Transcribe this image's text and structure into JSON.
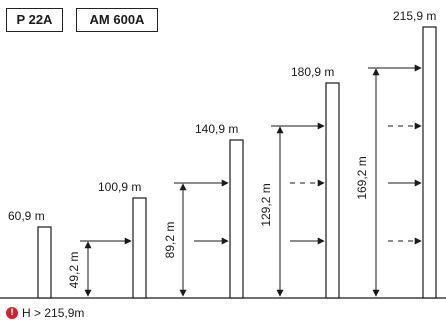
{
  "tabs": [
    {
      "label": "P 22A"
    },
    {
      "label": "AM 600A"
    }
  ],
  "columns": [
    {
      "top_label": "60,9 m",
      "height_label": "",
      "height_m": 60.9
    },
    {
      "top_label": "100,9 m",
      "height_label": "49,2 m",
      "height_m": 100.9
    },
    {
      "top_label": "140,9 m",
      "height_label": "89,2 m",
      "height_m": 140.9
    },
    {
      "top_label": "180,9 m",
      "height_label": "129,2 m",
      "height_m": 180.9
    },
    {
      "top_label": "215,9 m",
      "height_label": "169,2 m",
      "height_m": 215.9
    }
  ],
  "footnote": {
    "icon": "warning-icon",
    "icon_glyph": "!",
    "text": "H > 215,9m"
  },
  "colors": {
    "line": "#1a1a1a",
    "warning": "#d4212c"
  }
}
